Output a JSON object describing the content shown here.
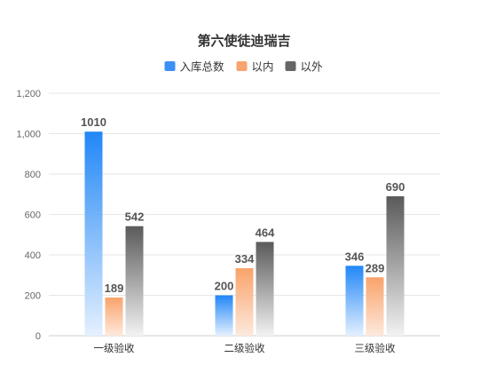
{
  "chart_data": {
    "type": "bar",
    "title": "第六使徒迪瑞吉",
    "categories": [
      "一级验收",
      "二级验收",
      "三级验收"
    ],
    "series": [
      {
        "name": "入库总数",
        "values": [
          1010,
          200,
          346
        ]
      },
      {
        "name": "以内",
        "values": [
          189,
          334,
          289
        ]
      },
      {
        "name": "以外",
        "values": [
          542,
          464,
          690
        ]
      }
    ],
    "yticks": [
      "0",
      "200",
      "400",
      "600",
      "800",
      "1,000",
      "1,200"
    ],
    "ylim": [
      0,
      1200
    ],
    "grid": true,
    "legend_position": "top",
    "xlabel": "",
    "ylabel": ""
  },
  "colors": {
    "series_top": [
      "#2187f7",
      "#f9a36a",
      "#5a5a5a"
    ],
    "series_bottom": [
      "#e4f0fe",
      "#fde9dc",
      "#f2f2f2"
    ],
    "legend_swatch": [
      "#3b8ff5",
      "#f7a46e",
      "#666666"
    ]
  }
}
